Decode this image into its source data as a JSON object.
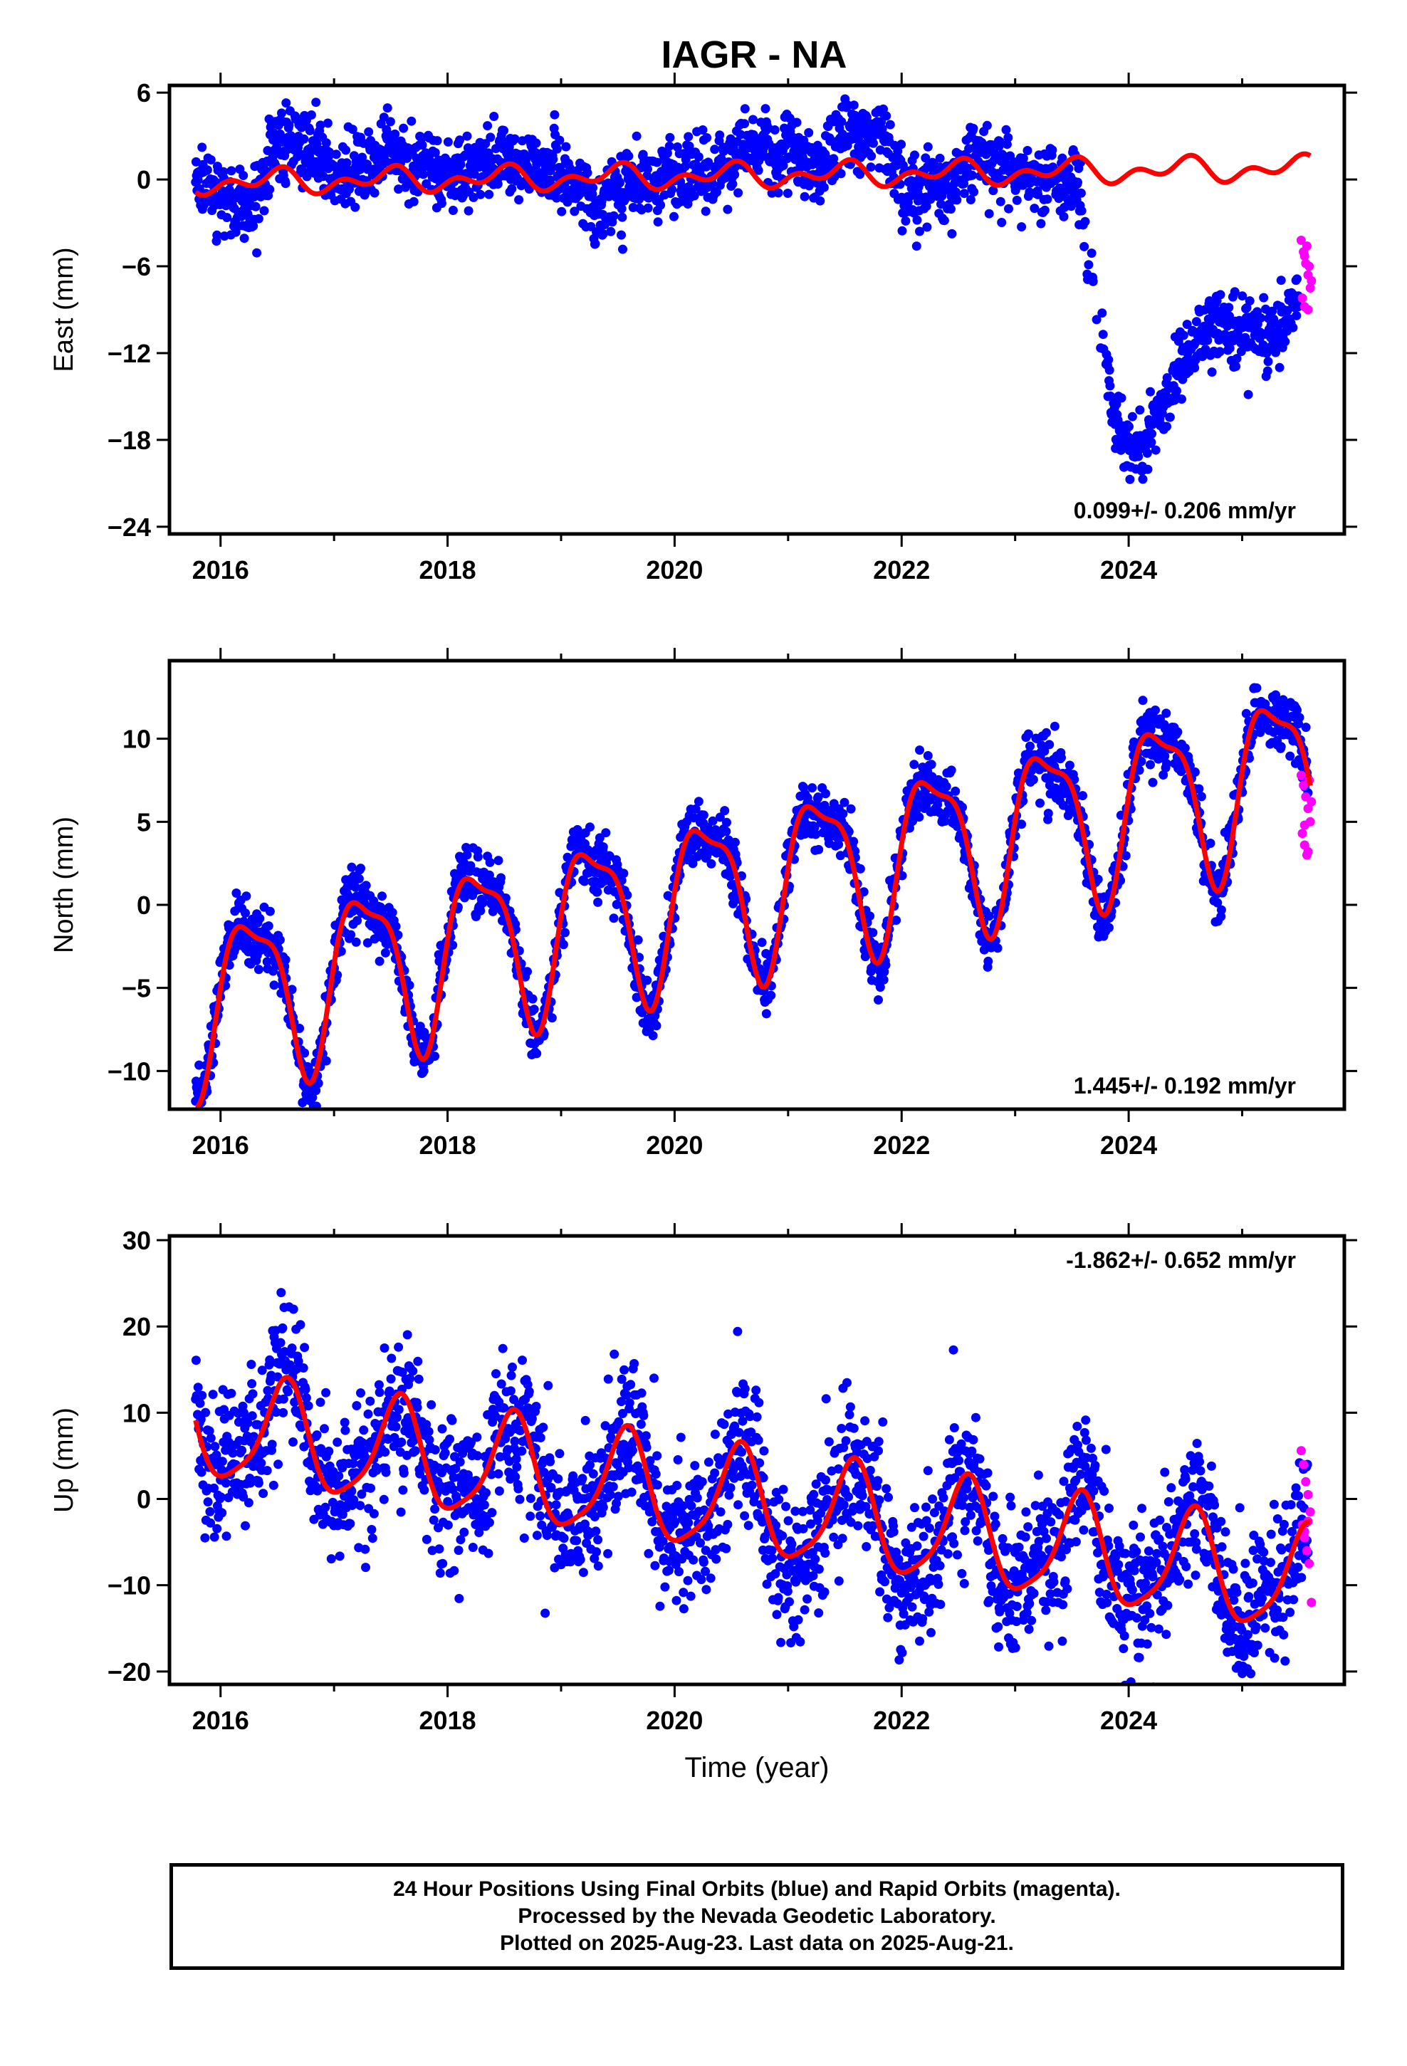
{
  "title": "IAGR - NA",
  "colors": {
    "final": "#0000ff",
    "rapid": "#ff00ff",
    "model": "#ff0000",
    "frame": "#000000"
  },
  "chart_data": [
    {
      "type": "scatter",
      "name": "east",
      "ylabel": "East (mm)",
      "xlabel": "",
      "xlim": [
        2015.55,
        2025.9
      ],
      "ylim": [
        -24.5,
        6.5
      ],
      "xticks": [
        2016,
        2018,
        2020,
        2022,
        2024
      ],
      "yticks": [
        -24,
        -18,
        -12,
        -6,
        0,
        6
      ],
      "annotation": "0.099+/- 0.206 mm/yr",
      "model": {
        "x0": 2015.78,
        "x1": 2025.6,
        "offset": 0.28,
        "trend": 0.099,
        "trend_ref": 2020.7,
        "sin": [
          0.1,
          0.4
        ],
        "cos": [
          -0.55,
          0.35
        ]
      },
      "final": {
        "x0": 2015.78,
        "x1": 2025.5,
        "scatter": 1.2,
        "offset_gap": [
          2023.55,
          2023.8
        ],
        "knots": [
          [
            2015.78,
            0.3
          ],
          [
            2016.1,
            -1.6
          ],
          [
            2016.3,
            -2.0
          ],
          [
            2016.5,
            2.8
          ],
          [
            2016.65,
            2.8
          ],
          [
            2017.0,
            0.6
          ],
          [
            2017.5,
            1.5
          ],
          [
            2018.0,
            0.5
          ],
          [
            2018.5,
            1.5
          ],
          [
            2019.0,
            0.4
          ],
          [
            2019.3,
            -2.2
          ],
          [
            2019.6,
            -0.3
          ],
          [
            2020.0,
            0.1
          ],
          [
            2020.4,
            0.8
          ],
          [
            2020.7,
            2.8
          ],
          [
            2021.0,
            1.5
          ],
          [
            2021.3,
            1.0
          ],
          [
            2021.6,
            3.8
          ],
          [
            2021.8,
            3.5
          ],
          [
            2022.0,
            -0.5
          ],
          [
            2022.4,
            -0.8
          ],
          [
            2022.6,
            1.8
          ],
          [
            2022.9,
            0.6
          ],
          [
            2023.3,
            0.2
          ],
          [
            2023.55,
            -0.2
          ],
          [
            2023.75,
            -10.0
          ],
          [
            2023.85,
            -16.0
          ],
          [
            2024.0,
            -19.0
          ],
          [
            2024.15,
            -18.0
          ],
          [
            2024.35,
            -14.5
          ],
          [
            2024.6,
            -11.5
          ],
          [
            2024.75,
            -9.5
          ],
          [
            2024.9,
            -10.5
          ],
          [
            2025.2,
            -11.0
          ],
          [
            2025.5,
            -9.0
          ]
        ]
      },
      "rapid": {
        "x": [
          2025.52,
          2025.54,
          2025.56,
          2025.58,
          2025.6,
          2025.53,
          2025.55,
          2025.57,
          2025.59,
          2025.61,
          2025.55,
          2025.58
        ],
        "y": [
          -4.2,
          -5.0,
          -5.8,
          -6.6,
          -7.5,
          -8.2,
          -8.8,
          -4.6,
          -6.0,
          -7.0,
          -5.3,
          -9.0
        ]
      }
    },
    {
      "type": "scatter",
      "name": "north",
      "ylabel": "North (mm)",
      "xlabel": "",
      "xlim": [
        2015.55,
        2025.9
      ],
      "ylim": [
        -12.3,
        14.7
      ],
      "xticks": [
        2016,
        2018,
        2020,
        2022,
        2024
      ],
      "yticks": [
        -10,
        -5,
        0,
        5,
        10
      ],
      "annotation": "1.445+/- 0.192 mm/yr",
      "model": {
        "x0": 2015.78,
        "x1": 2025.6,
        "offset": 1.2,
        "trend": 1.445,
        "trend_ref": 2020.7,
        "sin": [
          4.8,
          0.9
        ],
        "cos": [
          -0.6,
          1.2
        ]
      },
      "final": {
        "x0": 2015.78,
        "x1": 2025.58,
        "scatter": 0.9,
        "follow_model": true
      },
      "rapid": {
        "x": [
          2025.52,
          2025.54,
          2025.56,
          2025.58,
          2025.6,
          2025.53,
          2025.55,
          2025.57,
          2025.59,
          2025.61,
          2025.55,
          2025.58
        ],
        "y": [
          7.8,
          7.2,
          6.5,
          5.8,
          5.0,
          4.3,
          3.6,
          3.0,
          7.5,
          6.2,
          4.8,
          3.2
        ]
      }
    },
    {
      "type": "scatter",
      "name": "up",
      "ylabel": "Up (mm)",
      "xlabel": "Time (year)",
      "xlim": [
        2015.55,
        2025.9
      ],
      "ylim": [
        -21.5,
        30.5
      ],
      "xticks": [
        2016,
        2018,
        2020,
        2022,
        2024
      ],
      "yticks": [
        -20,
        -10,
        0,
        10,
        20,
        30
      ],
      "annotation": "-1.862+/- 0.652 mm/yr",
      "model": {
        "x0": 2015.78,
        "x1": 2025.6,
        "offset": -0.8,
        "trend": -1.862,
        "trend_ref": 2020.7,
        "sin": [
          -2.5,
          1.3
        ],
        "cos": [
          -5.5,
          0.2
        ]
      },
      "final": {
        "x0": 2015.78,
        "x1": 2025.58,
        "scatter": 4.2,
        "follow_model": true
      },
      "rapid": {
        "x": [
          2025.52,
          2025.54,
          2025.56,
          2025.58,
          2025.6,
          2025.53,
          2025.55,
          2025.57,
          2025.59,
          2025.61,
          2025.55,
          2025.58
        ],
        "y": [
          5.6,
          4.0,
          2.0,
          0.5,
          -1.5,
          -3.0,
          -4.5,
          -6.0,
          -7.5,
          -12.0,
          -3.8,
          -2.6
        ]
      }
    }
  ],
  "footer": {
    "line1": "24 Hour Positions Using Final Orbits (blue) and Rapid Orbits (magenta).",
    "line2": "Processed by the Nevada Geodetic Laboratory.",
    "line3": "Plotted on 2025-Aug-23. Last data on 2025-Aug-21."
  }
}
